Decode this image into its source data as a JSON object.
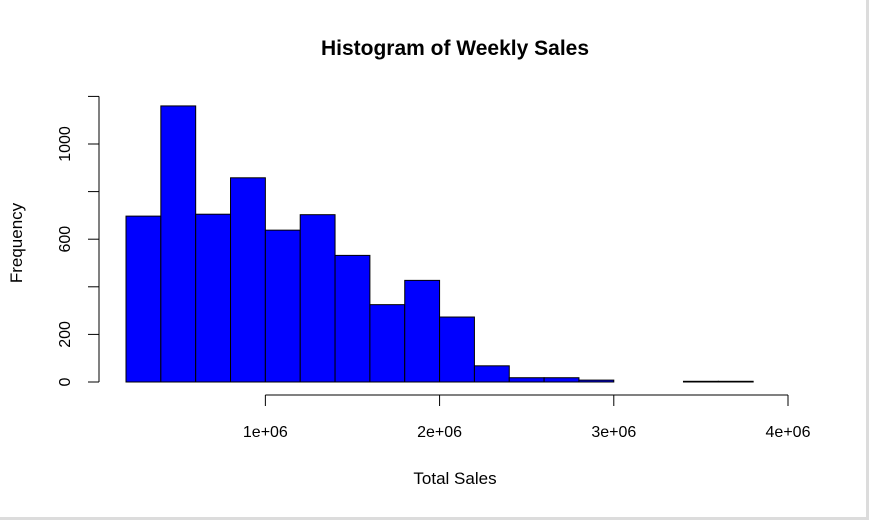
{
  "chart_data": {
    "type": "bar",
    "title": "Histogram of Weekly Sales",
    "xlabel": "Total Sales",
    "ylabel": "Frequency",
    "bar_color": "#0000ff",
    "bar_border_color": "#000000",
    "bin_edges": [
      200000,
      400000,
      600000,
      800000,
      1000000,
      1200000,
      1400000,
      1600000,
      1800000,
      2000000,
      2200000,
      2400000,
      2600000,
      2800000,
      3000000,
      3200000,
      3400000,
      3600000,
      3800000
    ],
    "values": [
      697,
      1160,
      705,
      858,
      638,
      703,
      532,
      325,
      427,
      273,
      68,
      18,
      18,
      8,
      0,
      0,
      3,
      3
    ],
    "xlim": [
      200000,
      4000000
    ],
    "ylim": [
      0,
      1200
    ],
    "x_ticks": [
      {
        "value": 1000000,
        "label": "1e+06"
      },
      {
        "value": 2000000,
        "label": "2e+06"
      },
      {
        "value": 3000000,
        "label": "3e+06"
      },
      {
        "value": 4000000,
        "label": "4e+06"
      }
    ],
    "y_ticks": [
      {
        "value": 0,
        "label": "0"
      },
      {
        "value": 200,
        "label": "200"
      },
      {
        "value": 400,
        "label": ""
      },
      {
        "value": 600,
        "label": "600"
      },
      {
        "value": 800,
        "label": ""
      },
      {
        "value": 1000,
        "label": "1000"
      },
      {
        "value": 1200,
        "label": ""
      }
    ],
    "grid": false,
    "legend": "none"
  }
}
